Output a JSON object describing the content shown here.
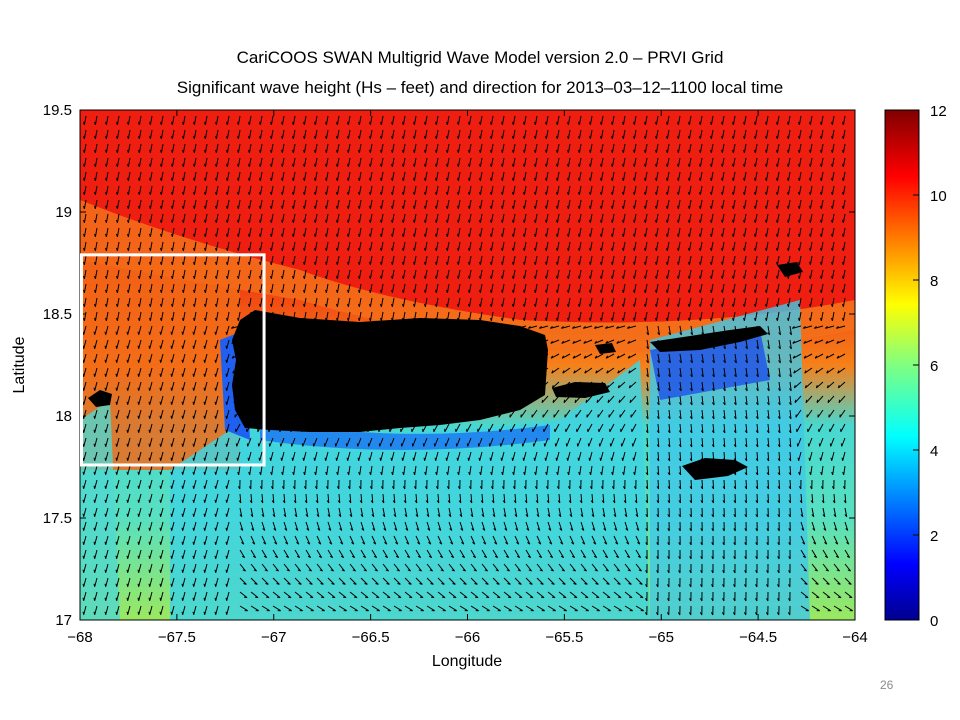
{
  "figure": {
    "title_line1": "CariCOOS SWAN Multigrid Wave Model version 2.0 – PRVI Grid",
    "title_line2": "Significant wave height (Hs – feet) and direction for 2013–03–12–1100 local time",
    "xlabel": "Longitude",
    "ylabel": "Latitude",
    "x_ticks": [
      "−68",
      "−67.5",
      "−67",
      "−66.5",
      "−66",
      "−65.5",
      "−65",
      "−64.5",
      "−64"
    ],
    "y_ticks": [
      "19.5",
      "19",
      "18.5",
      "18",
      "17.5",
      "17"
    ],
    "colorbar_ticks": [
      "12",
      "10",
      "8",
      "6",
      "4",
      "2",
      "0"
    ],
    "xlim": [
      -68,
      -64
    ],
    "ylim": [
      17,
      19.5
    ],
    "colorbar_range": [
      0,
      12
    ],
    "colormap": "jet",
    "land_color": "#000000",
    "arrow_color": "#000000",
    "highlight_box": {
      "lon": [
        -68,
        -67.05
      ],
      "lat": [
        17.76,
        18.79
      ],
      "color": "#ffffff"
    }
  },
  "slide_number": "26"
}
